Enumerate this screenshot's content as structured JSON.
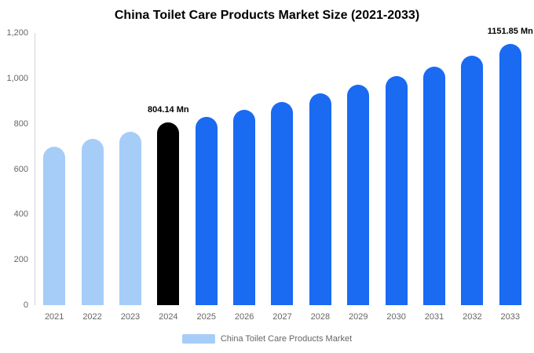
{
  "header": {
    "title": "China Toilet Care Products Market Size (2021-2033)"
  },
  "legend": {
    "label": "China Toilet Care Products Market",
    "swatch_color": "#a6cdf8"
  },
  "chart_data": {
    "type": "bar",
    "title": "China Toilet Care Products Market Size (2021-2033)",
    "categories": [
      "2021",
      "2022",
      "2023",
      "2024",
      "2025",
      "2026",
      "2027",
      "2028",
      "2029",
      "2030",
      "2031",
      "2032",
      "2033"
    ],
    "values": [
      700,
      732,
      764,
      804.14,
      830,
      861,
      897,
      933,
      972,
      1010,
      1052,
      1100,
      1151.85
    ],
    "ylim": [
      0,
      1200
    ],
    "yticks": [
      "0",
      "200",
      "400",
      "600",
      "800",
      "1,000",
      "1,200"
    ],
    "grid": false,
    "legend_position": "bottom",
    "colors": {
      "historical": "#a6cdf8",
      "highlight": "#000000",
      "forecast": "#1a6af2"
    },
    "color_map": [
      "historical",
      "historical",
      "historical",
      "highlight",
      "forecast",
      "forecast",
      "forecast",
      "forecast",
      "forecast",
      "forecast",
      "forecast",
      "forecast",
      "forecast"
    ],
    "annotations": [
      {
        "category": "2024",
        "text": "804.14 Mn"
      },
      {
        "category": "2033",
        "text": "1151.85 Mn"
      }
    ]
  }
}
